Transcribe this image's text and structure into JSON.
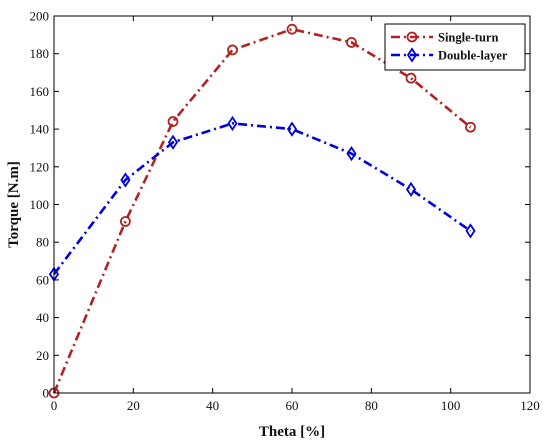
{
  "chart_data": {
    "type": "line",
    "title": "",
    "xlabel": "Theta [%]",
    "ylabel": "Torque [N.m]",
    "xlim": [
      0,
      120
    ],
    "ylim": [
      0,
      200
    ],
    "xticks": [
      0,
      20,
      40,
      60,
      80,
      100,
      120
    ],
    "yticks": [
      0,
      20,
      40,
      60,
      80,
      100,
      120,
      140,
      160,
      180,
      200
    ],
    "grid": false,
    "legend_position": "top-right",
    "series": [
      {
        "name": "Single-turn",
        "color": "#b22222",
        "marker": "circle",
        "line_style": "dash-dot",
        "x": [
          0,
          18,
          30,
          45,
          60,
          75,
          90,
          105
        ],
        "y": [
          0,
          91,
          144,
          182,
          193,
          186,
          167,
          141
        ]
      },
      {
        "name": "Double-layer",
        "color": "#0000dd",
        "marker": "diamond",
        "line_style": "dash-dot",
        "x": [
          0,
          18,
          30,
          45,
          60,
          75,
          90,
          105
        ],
        "y": [
          63,
          113,
          133,
          143,
          140,
          127,
          108,
          86
        ]
      }
    ]
  }
}
